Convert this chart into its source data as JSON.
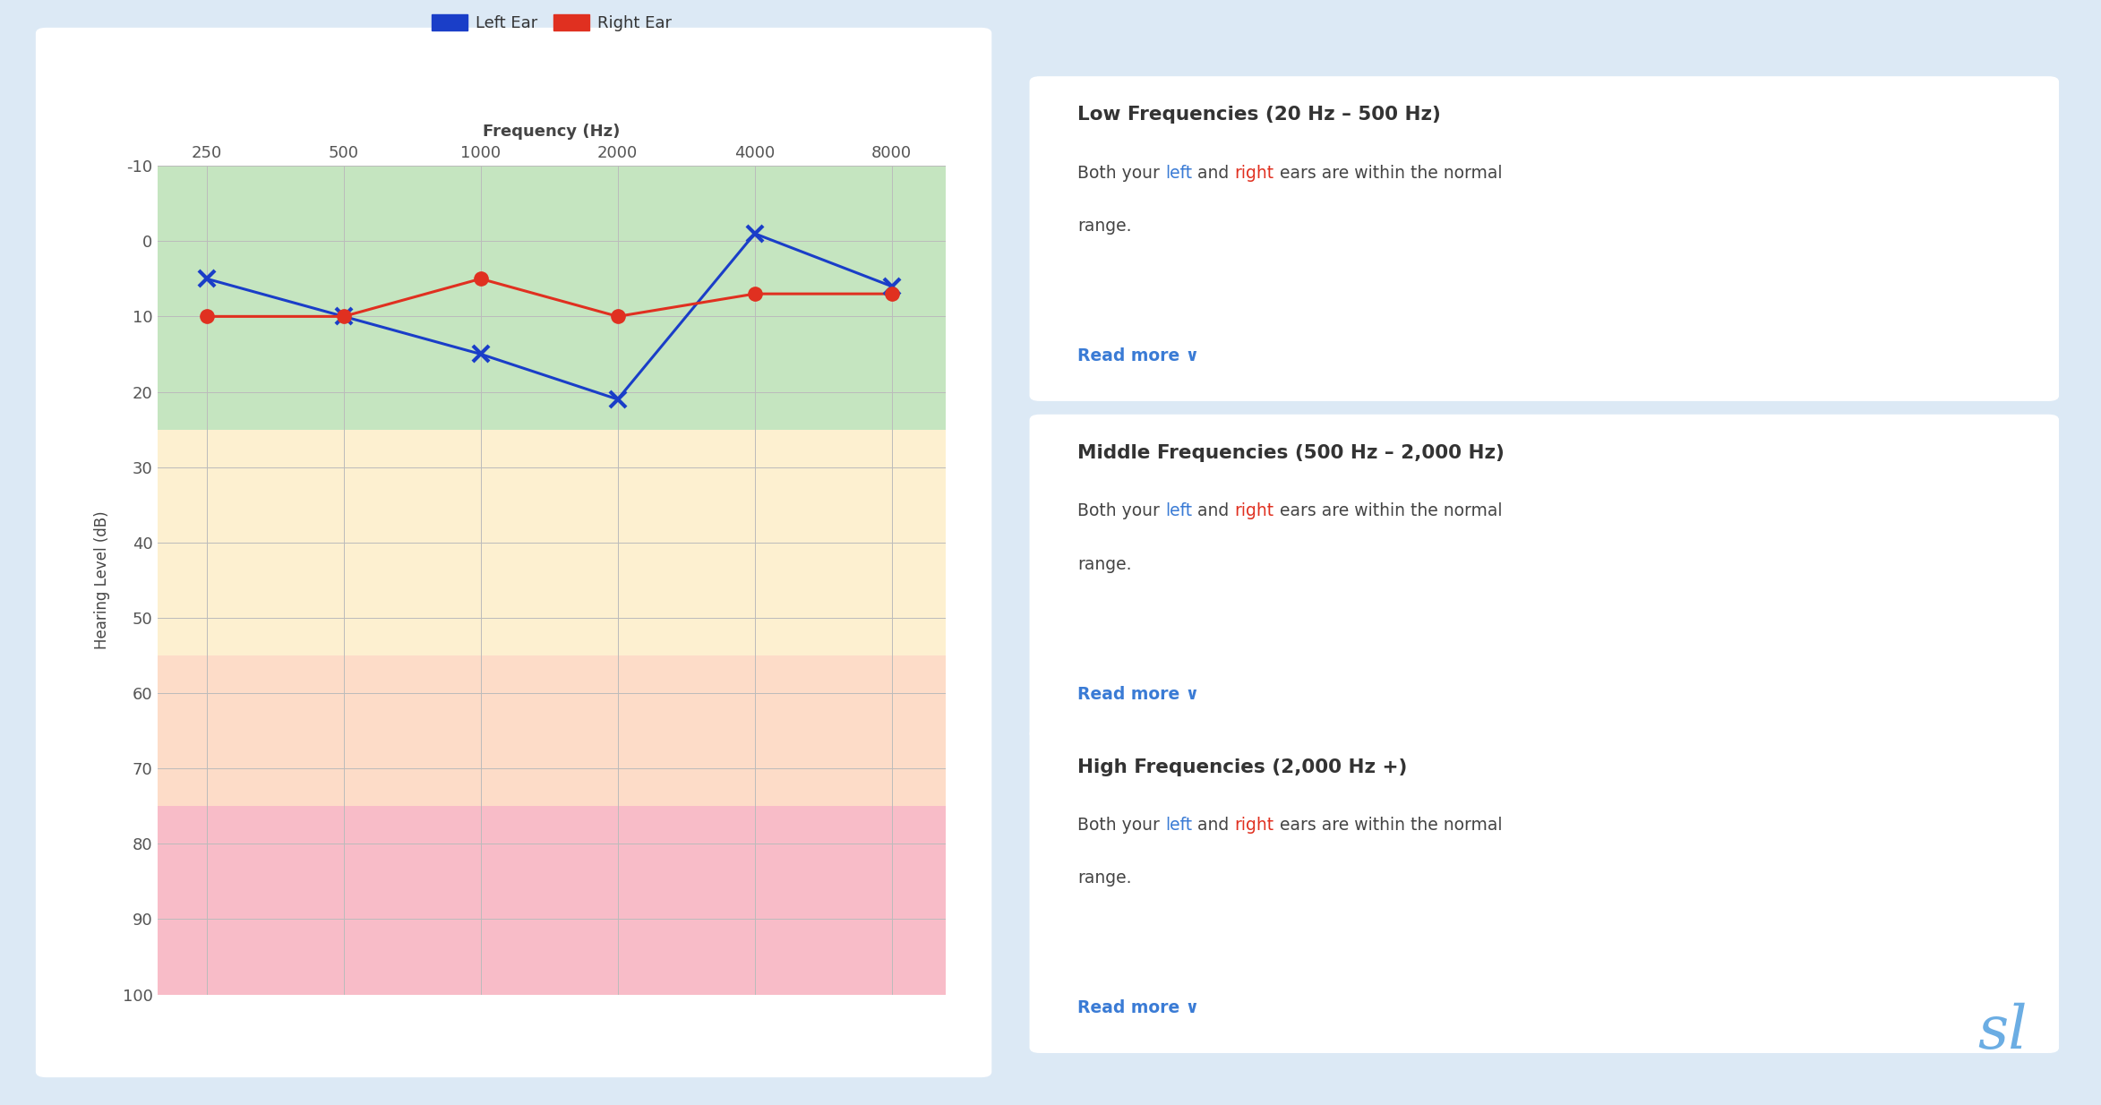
{
  "background_color": "#dce9f5",
  "chart_bg": "#ffffff",
  "freq_labels": [
    "250",
    "500",
    "1000",
    "2000",
    "4000",
    "8000"
  ],
  "freq_positions": [
    250,
    500,
    1000,
    2000,
    4000,
    8000
  ],
  "left_ear_values": [
    5,
    10,
    15,
    21,
    -1,
    6
  ],
  "right_ear_values": [
    10,
    10,
    5,
    10,
    7,
    7
  ],
  "ylim": [
    -10,
    100
  ],
  "yticks": [
    -10,
    0,
    10,
    20,
    30,
    40,
    50,
    60,
    70,
    80,
    90,
    100
  ],
  "xlabel": "Frequency (Hz)",
  "ylabel": "Hearing Level (dB)",
  "left_color": "#1a3ec8",
  "right_color": "#e03020",
  "zones": [
    {
      "ymin": -10,
      "ymax": 25,
      "color": "#c5e5c0"
    },
    {
      "ymin": 25,
      "ymax": 55,
      "color": "#fdf0d0"
    },
    {
      "ymin": 55,
      "ymax": 75,
      "color": "#fddcc8"
    },
    {
      "ymin": 75,
      "ymax": 100,
      "color": "#f8bcc8"
    }
  ],
  "cards": [
    {
      "title": "Low Frequencies (20 Hz – 500 Hz)",
      "read_more": "Read more ∨"
    },
    {
      "title": "Middle Frequencies (500 Hz – 2,000 Hz)",
      "read_more": "Read more ∨"
    },
    {
      "title": "High Frequencies (2,000 Hz +)",
      "read_more": "Read more ∨"
    }
  ],
  "left_label": "Left Ear",
  "right_label": "Right Ear",
  "left_text_color": "#3a7bd5",
  "right_text_color": "#e03020",
  "card_title_color": "#333333",
  "card_body_color": "#444444",
  "readmore_color": "#3a7bd5"
}
